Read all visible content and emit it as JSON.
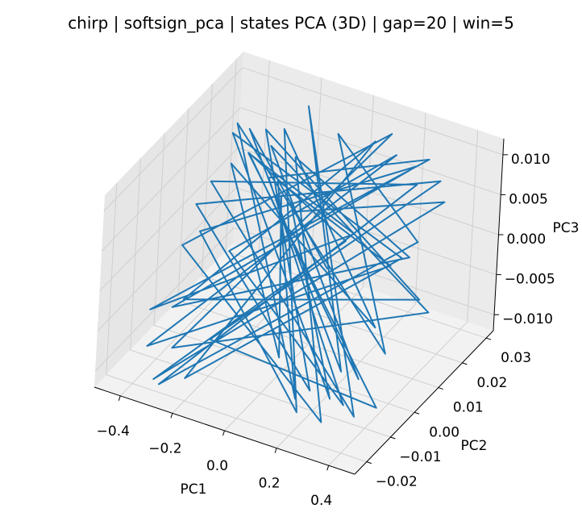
{
  "chart_data": {
    "type": "line3d",
    "title": "chirp | softsign_pca | states PCA (3D) | gap=20 | win=5",
    "xlabel": "PC1",
    "ylabel": "PC2",
    "zlabel": "PC3",
    "xlim": [
      -0.5,
      0.5
    ],
    "ylim": [
      -0.025,
      0.033
    ],
    "zlim": [
      -0.012,
      0.012
    ],
    "xticks": [
      {
        "value": -0.4,
        "label": "−0.4"
      },
      {
        "value": -0.2,
        "label": "−0.2"
      },
      {
        "value": 0,
        "label": "0.0"
      },
      0.2,
      0.4
    ],
    "yticks": [
      {
        "value": -0.02,
        "label": "−0.02"
      },
      {
        "value": -0.01,
        "label": "−0.01"
      },
      {
        "value": 0,
        "label": "0.00"
      },
      0.01,
      0.02,
      0.03
    ],
    "zticks": [
      {
        "value": -0.01,
        "label": "−0.010"
      },
      {
        "value": -0.005,
        "label": "−0.005"
      },
      {
        "value": 0,
        "label": "0.000"
      },
      {
        "value": 0.005,
        "label": "0.005"
      },
      {
        "value": 0.01,
        "label": "0.010"
      }
    ],
    "grid": true,
    "series": [
      {
        "color": "#1f77b4",
        "x": [
          0.1,
          -0.35,
          0.3,
          -0.2,
          0.4,
          -0.4,
          0.25,
          -0.3,
          0.35,
          -0.1,
          0.42,
          -0.38,
          0.2,
          -0.25,
          0.38,
          -0.42,
          0.15,
          -0.3,
          0.4,
          -0.2,
          0.3,
          -0.45,
          0.1,
          -0.35,
          0.44,
          -0.15,
          0.33,
          -0.4,
          0.22,
          -0.28,
          0.41,
          -0.36,
          0.05,
          -0.22,
          0.37,
          -0.43,
          0.28,
          -0.12,
          0.4,
          -0.33,
          0.18,
          -0.39,
          0.35,
          -0.24,
          0.43,
          -0.3,
          0.12,
          -0.41,
          0.32,
          -0.18,
          0.39,
          -0.35,
          0.26,
          -0.44,
          0.2,
          -0.27,
          0.36,
          -0.37,
          0.08,
          -0.2
        ],
        "y": [
          0.005,
          0.02,
          -0.01,
          0.028,
          -0.015,
          0.01,
          0.025,
          -0.02,
          0.015,
          0.03,
          -0.005,
          0.018,
          -0.018,
          0.022,
          0.0,
          -0.012,
          0.027,
          0.008,
          -0.02,
          0.012,
          0.024,
          -0.008,
          0.016,
          0.02,
          -0.01,
          -0.016,
          0.026,
          0.004,
          -0.014,
          0.019,
          0.01,
          -0.004,
          0.029,
          -0.018,
          0.006,
          0.022,
          -0.012,
          0.014,
          0.02,
          -0.019,
          0.003,
          0.025,
          -0.008,
          0.017,
          0.012,
          -0.015,
          0.028,
          0.0,
          -0.02,
          0.021,
          0.007,
          -0.01,
          0.023,
          0.011,
          -0.017,
          0.026,
          -0.003,
          0.015,
          -0.012,
          0.018
        ],
        "z": [
          0.0,
          0.008,
          -0.006,
          0.01,
          -0.009,
          0.004,
          0.006,
          -0.011,
          0.003,
          0.007,
          -0.004,
          0.009,
          -0.008,
          0.002,
          0.005,
          -0.01,
          0.008,
          -0.003,
          -0.006,
          0.006,
          0.01,
          -0.007,
          0.001,
          0.005,
          -0.009,
          -0.005,
          0.007,
          0.003,
          -0.008,
          0.009,
          -0.002,
          -0.006,
          0.008,
          -0.01,
          0.004,
          0.006,
          -0.009,
          0.002,
          0.007,
          -0.011,
          0.005,
          0.003,
          -0.007,
          0.008,
          -0.004,
          -0.008,
          0.01,
          -0.001,
          -0.009,
          0.006,
          0.004,
          -0.005,
          0.009,
          -0.003,
          -0.01,
          0.007,
          -0.002,
          0.005,
          -0.006,
          0.002
        ]
      }
    ]
  }
}
